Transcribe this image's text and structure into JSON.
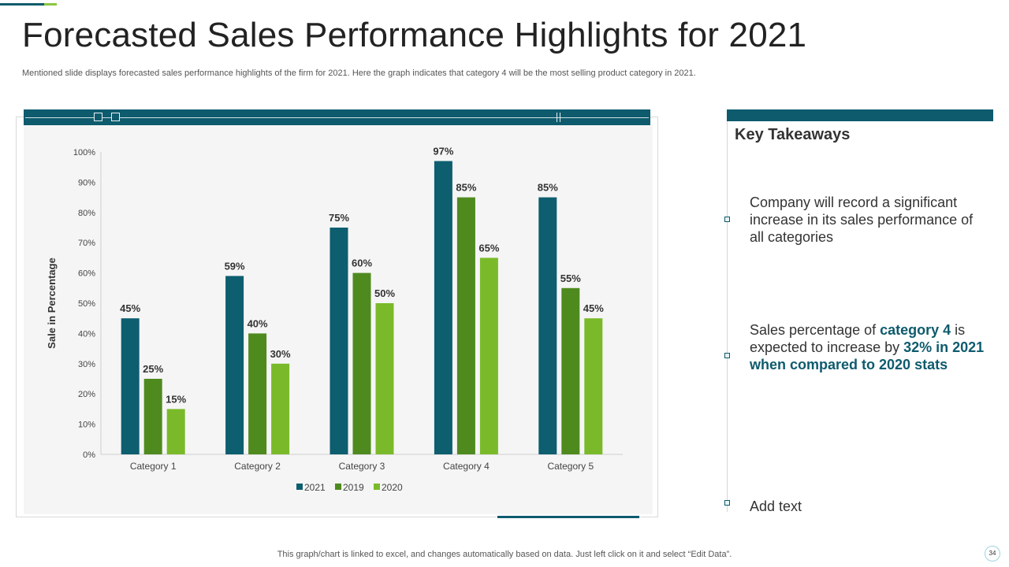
{
  "header": {
    "title": "Forecasted Sales Performance Highlights for 2021",
    "subtitle": "Mentioned slide displays forecasted sales performance highlights of the firm for 2021. Here the graph indicates that category 4 will be the most selling product category in 2021."
  },
  "colors": {
    "series_2021": "#0d5e6f",
    "series_2019": "#4f8a1f",
    "series_2020": "#7aba2a",
    "accent": "#0e5b6e"
  },
  "chart_data": {
    "type": "bar",
    "title": "",
    "xlabel": "",
    "ylabel": "Sale in Percentage",
    "ylim": [
      0,
      100
    ],
    "yticks": [
      "0%",
      "10%",
      "20%",
      "30%",
      "40%",
      "50%",
      "60%",
      "70%",
      "80%",
      "90%",
      "100%"
    ],
    "categories": [
      "Category 1",
      "Category 2",
      "Category 3",
      "Category 4",
      "Category 5"
    ],
    "series": [
      {
        "name": "2021",
        "values": [
          45,
          59,
          75,
          97,
          85
        ],
        "labels": [
          "45%",
          "59%",
          "75%",
          "97%",
          "85%"
        ]
      },
      {
        "name": "2019",
        "values": [
          25,
          40,
          60,
          85,
          55
        ],
        "labels": [
          "25%",
          "40%",
          "60%",
          "85%",
          "55%"
        ]
      },
      {
        "name": "2020",
        "values": [
          15,
          30,
          50,
          65,
          45
        ],
        "labels": [
          "15%",
          "30%",
          "50%",
          "65%",
          "45%"
        ]
      }
    ],
    "legend": "bottom-center",
    "grid": false
  },
  "takeaways": {
    "title": "Key Takeaways",
    "item1": "Company will record a significant increase in its sales performance of all categories",
    "item2_pre": "Sales percentage of ",
    "item2_hl1": "category 4",
    "item2_mid": " is expected to increase by ",
    "item2_hl2": "32% in 2021 when compared to 2020 stats",
    "item3": "Add text"
  },
  "footer": {
    "note": "This graph/chart is linked to excel,  and changes automatically based on data. Just left click on it and select “Edit Data”.",
    "page_number": "34"
  }
}
